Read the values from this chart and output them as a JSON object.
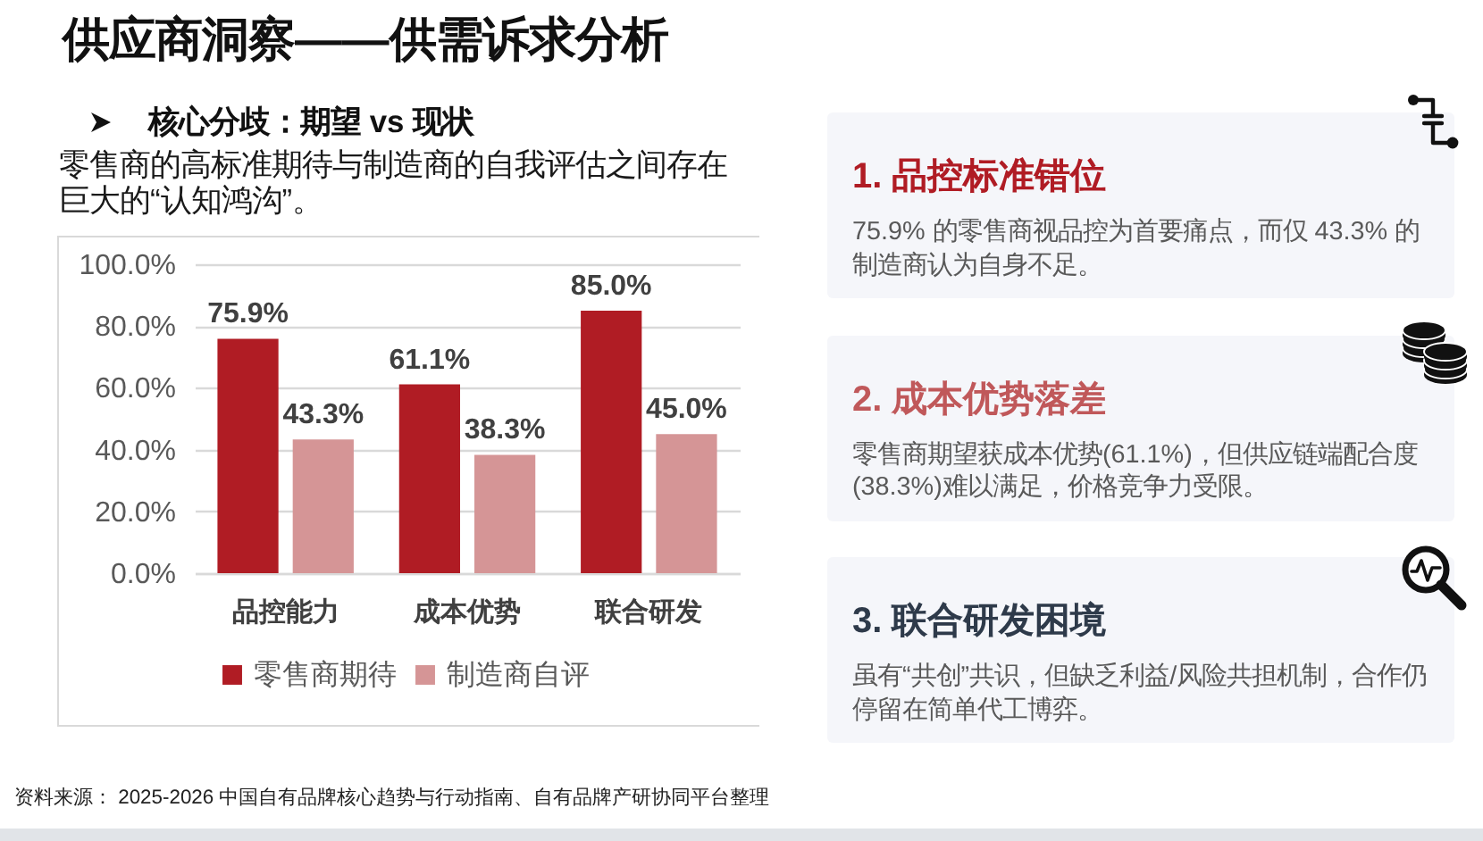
{
  "chart_data": [
    {
      "type": "bar",
      "title": "供应商洞察——供需诉求分析",
      "subtitle": "核心分歧：期望 vs 现状",
      "annotations": [
        "零售商的高标准期待与制造商的自我评估之间存在巨大的“认知鸿沟”。",
        "资料来源： 2025-2026 中国自有品牌核心趋势与行动指南、自有品牌产研协同平台整理"
      ],
      "categories": [
        "品控能力",
        "成本优势",
        "联合研发"
      ],
      "series": [
        {
          "name": "零售商期待",
          "color": "#b01c24",
          "values": [
            75.9,
            61.1,
            85.0
          ],
          "value_labels": [
            "75.9%",
            "61.1%",
            "85.0%"
          ]
        },
        {
          "name": "制造商自评",
          "color": "#d59596",
          "values": [
            43.3,
            38.3,
            45.0
          ],
          "value_labels": [
            "43.3%",
            "38.3%",
            "45.0%"
          ]
        }
      ],
      "ylim": [
        0,
        100
      ],
      "yticks": [
        {
          "value": 0,
          "label": "0.0%"
        },
        {
          "value": 20,
          "label": "20.0%"
        },
        {
          "value": 40,
          "label": "40.0%"
        },
        {
          "value": 60,
          "label": "60.0%"
        },
        {
          "value": 80,
          "label": "80.0%"
        },
        {
          "value": 100,
          "label": "100.0%"
        }
      ],
      "grid": "y",
      "legend": "bottom"
    },
    {
      "type": "other",
      "title": "1. 品控标准错位",
      "color": "#b01c24",
      "annotations": [
        "75.9% 的零售商视品控为首要痛点，而仅 43.3% 的制造商认为自身不足。"
      ]
    },
    {
      "type": "other",
      "title": "2. 成本优势落差",
      "color": "#c0585a",
      "annotations": [
        "零售商期望获成本优势(61.1%)，但供应链端配合度 (38.3%)难以满足，价格竞争力受限。"
      ]
    },
    {
      "type": "other",
      "title": "3. 联合研发困境",
      "color": "#2e3a4a",
      "annotations": [
        "虽有“共创”共识，但缺乏利益/风险共担机制，合作仍停留在简单代工博弈。"
      ]
    }
  ]
}
